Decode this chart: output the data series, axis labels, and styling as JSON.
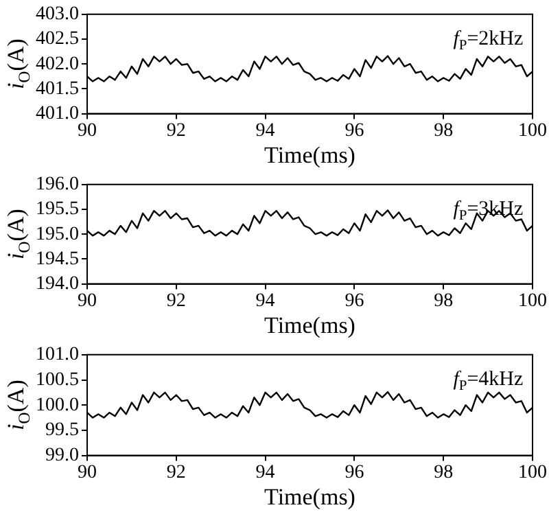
{
  "chart_data": [
    {
      "type": "line",
      "xlabel": "Time(ms)",
      "ylabel": "i$_{O}$(A)",
      "annotations": [
        "f$_{P}$=2kHz"
      ],
      "x": [
        90,
        90.125,
        90.25,
        90.375,
        90.5,
        90.625,
        90.75,
        90.875,
        91,
        91.125,
        91.25,
        91.375,
        91.5,
        91.625,
        91.75,
        91.875,
        92,
        92.125,
        92.25,
        92.375,
        92.5,
        92.625,
        92.75,
        92.875,
        93,
        93.125,
        93.25,
        93.375,
        93.5,
        93.625,
        93.75,
        93.875,
        94,
        94.125,
        94.25,
        94.375,
        94.5,
        94.625,
        94.75,
        94.875,
        95,
        95.125,
        95.25,
        95.375,
        95.5,
        95.625,
        95.75,
        95.875,
        96,
        96.125,
        96.25,
        96.375,
        96.5,
        96.625,
        96.75,
        96.875,
        97,
        97.125,
        97.25,
        97.375,
        97.5,
        97.625,
        97.75,
        97.875,
        98,
        98.125,
        98.25,
        98.375,
        98.5,
        98.625,
        98.75,
        98.875,
        99,
        99.125,
        99.25,
        99.375,
        99.5,
        99.625,
        99.75,
        99.875,
        100
      ],
      "series": [
        {
          "color": "#000000",
          "values": [
            401.75,
            401.65,
            401.72,
            401.65,
            401.75,
            401.68,
            401.85,
            401.72,
            401.95,
            401.8,
            402.1,
            401.95,
            402.15,
            402.05,
            402.15,
            402.0,
            402.1,
            401.98,
            402.0,
            401.82,
            401.85,
            401.7,
            401.75,
            401.65,
            401.72,
            401.65,
            401.75,
            401.68,
            401.88,
            401.75,
            402.05,
            401.9,
            402.15,
            402.05,
            402.15,
            402.0,
            402.12,
            401.98,
            402.02,
            401.85,
            401.8,
            401.68,
            401.72,
            401.65,
            401.72,
            401.66,
            401.78,
            401.7,
            401.9,
            401.75,
            402.08,
            401.92,
            402.15,
            402.05,
            402.16,
            402.0,
            402.12,
            401.95,
            402.0,
            401.82,
            401.85,
            401.68,
            401.75,
            401.65,
            401.72,
            401.66,
            401.8,
            401.7,
            401.9,
            401.78,
            402.1,
            401.95,
            402.15,
            402.05,
            402.15,
            402.02,
            402.1,
            401.95,
            401.98,
            401.75,
            401.85
          ]
        }
      ],
      "xlim": [
        90,
        100
      ],
      "xticks": [
        90,
        92,
        94,
        96,
        98,
        100
      ],
      "ylim": [
        401,
        403
      ],
      "yticks": [
        {
          "value": 401,
          "label": "401.0"
        },
        {
          "value": 401.5,
          "label": "401.5"
        },
        {
          "value": 402,
          "label": "402.0"
        },
        {
          "value": 402.5,
          "label": "402.5"
        },
        {
          "value": 403,
          "label": "403.0"
        }
      ]
    },
    {
      "type": "line",
      "xlabel": "Time(ms)",
      "ylabel": "i$_{O}$(A)",
      "annotations": [
        "f$_{P}$=3kHz"
      ],
      "x": [
        90,
        90.125,
        90.25,
        90.375,
        90.5,
        90.625,
        90.75,
        90.875,
        91,
        91.125,
        91.25,
        91.375,
        91.5,
        91.625,
        91.75,
        91.875,
        92,
        92.125,
        92.25,
        92.375,
        92.5,
        92.625,
        92.75,
        92.875,
        93,
        93.125,
        93.25,
        93.375,
        93.5,
        93.625,
        93.75,
        93.875,
        94,
        94.125,
        94.25,
        94.375,
        94.5,
        94.625,
        94.75,
        94.875,
        95,
        95.125,
        95.25,
        95.375,
        95.5,
        95.625,
        95.75,
        95.875,
        96,
        96.125,
        96.25,
        96.375,
        96.5,
        96.625,
        96.75,
        96.875,
        97,
        97.125,
        97.25,
        97.375,
        97.5,
        97.625,
        97.75,
        97.875,
        98,
        98.125,
        98.25,
        98.375,
        98.5,
        98.625,
        98.75,
        98.875,
        99,
        99.125,
        99.25,
        99.375,
        99.5,
        99.625,
        99.75,
        99.875,
        100
      ],
      "series": [
        {
          "color": "#000000",
          "values": [
            195.07,
            194.97,
            195.04,
            194.97,
            195.07,
            195.0,
            195.17,
            195.04,
            195.27,
            195.12,
            195.42,
            195.27,
            195.47,
            195.37,
            195.47,
            195.32,
            195.42,
            195.3,
            195.32,
            195.14,
            195.17,
            195.02,
            195.07,
            194.97,
            195.04,
            194.97,
            195.07,
            195.0,
            195.2,
            195.07,
            195.37,
            195.22,
            195.47,
            195.37,
            195.47,
            195.32,
            195.44,
            195.3,
            195.34,
            195.17,
            195.12,
            195.0,
            195.04,
            194.97,
            195.04,
            194.98,
            195.1,
            195.02,
            195.22,
            195.07,
            195.4,
            195.24,
            195.47,
            195.37,
            195.48,
            195.32,
            195.44,
            195.27,
            195.32,
            195.14,
            195.17,
            195.0,
            195.07,
            194.97,
            195.04,
            194.98,
            195.12,
            195.02,
            195.22,
            195.1,
            195.42,
            195.27,
            195.47,
            195.37,
            195.47,
            195.34,
            195.42,
            195.27,
            195.3,
            195.07,
            195.17
          ]
        }
      ],
      "xlim": [
        90,
        100
      ],
      "xticks": [
        90,
        92,
        94,
        96,
        98,
        100
      ],
      "ylim": [
        194,
        196
      ],
      "yticks": [
        {
          "value": 194,
          "label": "194.0"
        },
        {
          "value": 194.5,
          "label": "194.5"
        },
        {
          "value": 195,
          "label": "195.0"
        },
        {
          "value": 195.5,
          "label": "195.5"
        },
        {
          "value": 196,
          "label": "196.0"
        }
      ]
    },
    {
      "type": "line",
      "xlabel": "Time(ms)",
      "ylabel": "i$_{O}$(A)",
      "annotations": [
        "f$_{P}$=4kHz"
      ],
      "x": [
        90,
        90.125,
        90.25,
        90.375,
        90.5,
        90.625,
        90.75,
        90.875,
        91,
        91.125,
        91.25,
        91.375,
        91.5,
        91.625,
        91.75,
        91.875,
        92,
        92.125,
        92.25,
        92.375,
        92.5,
        92.625,
        92.75,
        92.875,
        93,
        93.125,
        93.25,
        93.375,
        93.5,
        93.625,
        93.75,
        93.875,
        94,
        94.125,
        94.25,
        94.375,
        94.5,
        94.625,
        94.75,
        94.875,
        95,
        95.125,
        95.25,
        95.375,
        95.5,
        95.625,
        95.75,
        95.875,
        96,
        96.125,
        96.25,
        96.375,
        96.5,
        96.625,
        96.75,
        96.875,
        97,
        97.125,
        97.25,
        97.375,
        97.5,
        97.625,
        97.75,
        97.875,
        98,
        98.125,
        98.25,
        98.375,
        98.5,
        98.625,
        98.75,
        98.875,
        99,
        99.125,
        99.25,
        99.375,
        99.5,
        99.625,
        99.75,
        99.875,
        100
      ],
      "series": [
        {
          "color": "#000000",
          "values": [
            99.85,
            99.75,
            99.82,
            99.75,
            99.85,
            99.78,
            99.95,
            99.82,
            100.05,
            99.9,
            100.2,
            100.05,
            100.25,
            100.15,
            100.25,
            100.1,
            100.2,
            100.08,
            100.1,
            99.92,
            99.95,
            99.8,
            99.85,
            99.75,
            99.82,
            99.75,
            99.85,
            99.78,
            99.98,
            99.85,
            100.15,
            100.0,
            100.25,
            100.15,
            100.25,
            100.1,
            100.22,
            100.08,
            100.12,
            99.95,
            99.9,
            99.78,
            99.82,
            99.75,
            99.82,
            99.76,
            99.88,
            99.8,
            100.0,
            99.85,
            100.18,
            100.02,
            100.25,
            100.15,
            100.26,
            100.1,
            100.22,
            100.05,
            100.1,
            99.92,
            99.95,
            99.78,
            99.85,
            99.75,
            99.82,
            99.76,
            99.9,
            99.8,
            100.0,
            99.88,
            100.2,
            100.05,
            100.25,
            100.15,
            100.25,
            100.12,
            100.2,
            100.05,
            100.08,
            99.85,
            99.95
          ]
        }
      ],
      "xlim": [
        90,
        100
      ],
      "xticks": [
        90,
        92,
        94,
        96,
        98,
        100
      ],
      "ylim": [
        99,
        101
      ],
      "yticks": [
        {
          "value": 99,
          "label": "99.0"
        },
        {
          "value": 99.5,
          "label": "99.5"
        },
        {
          "value": 100,
          "label": "100.0"
        },
        {
          "value": 100.5,
          "label": "100.5"
        },
        {
          "value": 101,
          "label": "101.0"
        }
      ]
    }
  ]
}
